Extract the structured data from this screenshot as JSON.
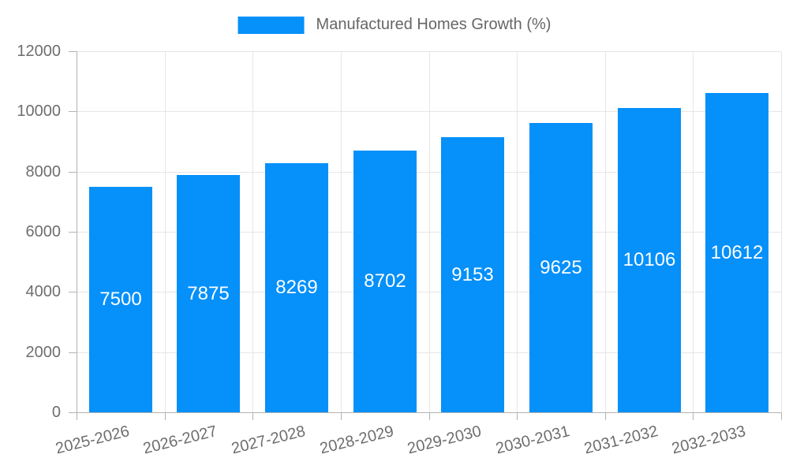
{
  "legend": {
    "label": "Manufactured Homes Growth (%)"
  },
  "chart_data": {
    "type": "bar",
    "title": "Manufactured Homes Growth (%)",
    "categories": [
      "2025-2026",
      "2026-2027",
      "2027-2028",
      "2028-2029",
      "2029-2030",
      "2030-2031",
      "2031-2032",
      "2032-2033"
    ],
    "values": [
      7500,
      7875,
      8269,
      8702,
      9153,
      9625,
      10106,
      10612
    ],
    "bar_labels": [
      "7500",
      "7875",
      "8269",
      "8702",
      "9153",
      "9625",
      "10106",
      "10612"
    ],
    "xlabel": "",
    "ylabel": "",
    "ylim": [
      0,
      12000
    ],
    "y_ticks": [
      0,
      2000,
      4000,
      6000,
      8000,
      10000,
      12000
    ],
    "grid": true,
    "legend_position": "top",
    "colors": {
      "bar": "#0590fa",
      "grid": "#e6e6e6",
      "axis": "#b3b3b3",
      "tick_text": "#6e6e6e",
      "legend_text": "#666666",
      "bar_label_text": "#ffffff",
      "background": "#ffffff"
    }
  }
}
